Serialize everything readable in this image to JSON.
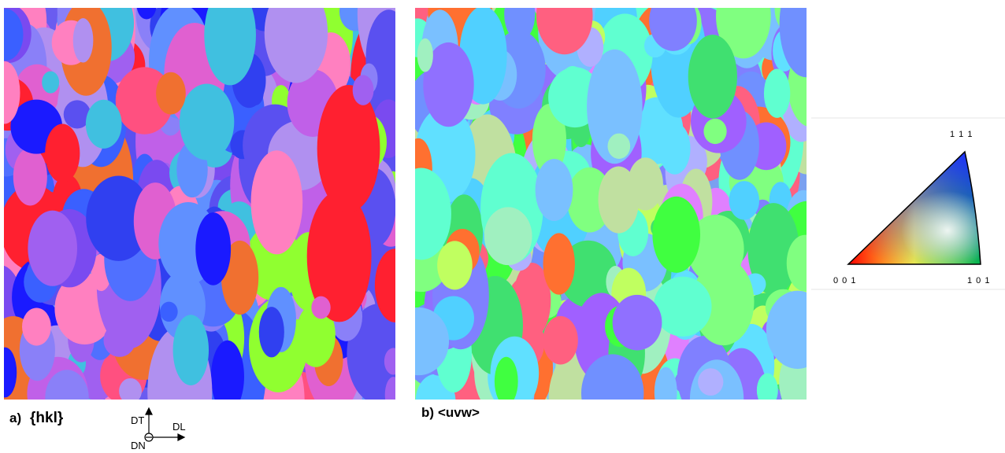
{
  "panels": [
    {
      "letter": "a)",
      "label": "{hkl}"
    },
    {
      "letter": "b)",
      "label": "<uvw>"
    }
  ],
  "axes": {
    "up": "DT",
    "right": "DL",
    "normal": "DN"
  },
  "legend": {
    "top": "1 1 1",
    "left": "0 0 1",
    "right": "1 0 1"
  }
}
